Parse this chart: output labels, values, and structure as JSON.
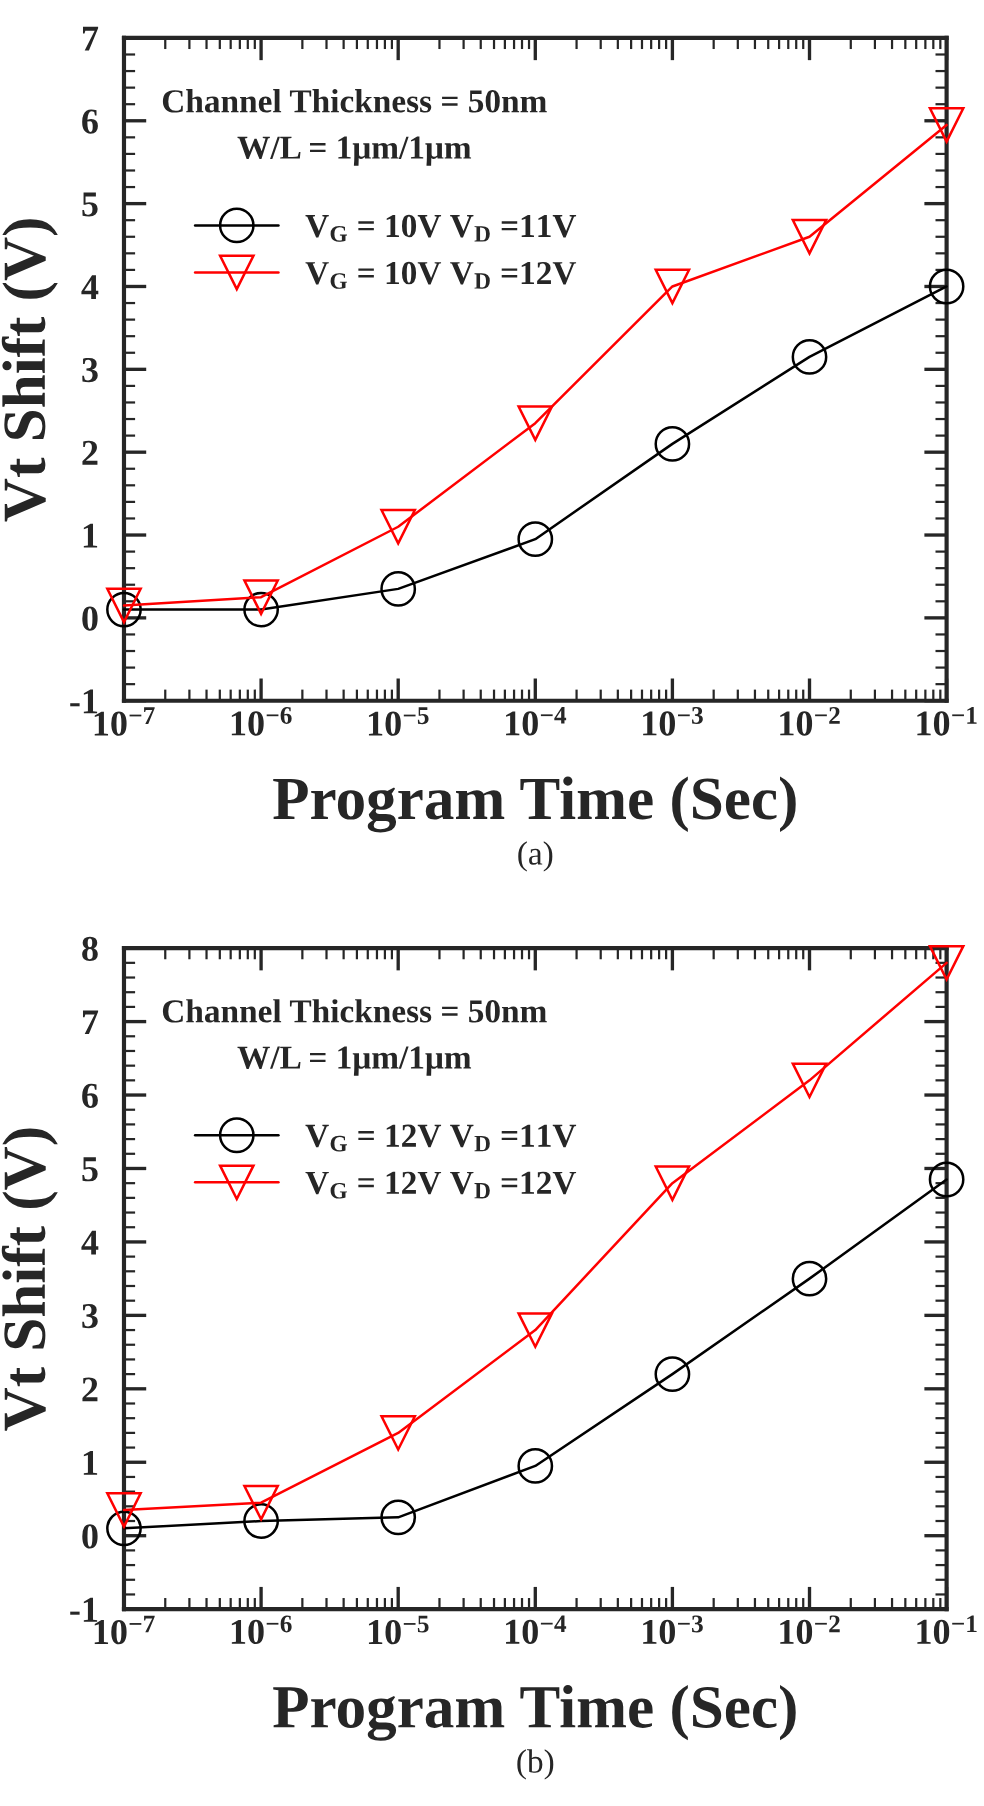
{
  "chart_data": [
    {
      "type": "line",
      "xlabel": "Program Time (Sec)",
      "ylabel": "Vt Shift (V)",
      "log": "x",
      "x": [
        1e-07,
        1e-06,
        1e-05,
        0.0001,
        0.001,
        0.01,
        0.1
      ],
      "series": [
        {
          "name": "V$_{G}$ = 10V V$_{D}$ =11V",
          "color": "#000000",
          "marker": "circle",
          "values": [
            0.1,
            0.1,
            0.35,
            0.95,
            2.1,
            3.15,
            4.0
          ]
        },
        {
          "name": "V$_{G}$ = 10V V$_{D}$ =12V",
          "color": "#ff0000",
          "marker": "triangle",
          "values": [
            0.15,
            0.25,
            1.1,
            2.35,
            4.0,
            4.6,
            5.95
          ]
        }
      ],
      "xlim": [
        1e-07,
        0.1
      ],
      "ylim": [
        -1,
        7
      ],
      "xticks": [
        {
          "value": 1e-07,
          "label": "10$^{−7}$"
        },
        {
          "value": 1e-06,
          "label": "10$^{−6}$"
        },
        {
          "value": 1e-05,
          "label": "10$^{−5}$"
        },
        {
          "value": 0.0001,
          "label": "10$^{−4}$"
        },
        {
          "value": 0.001,
          "label": "10$^{−3}$"
        },
        {
          "value": 0.01,
          "label": "10$^{−2}$"
        },
        {
          "value": 0.1,
          "label": "10$^{−1}$"
        }
      ],
      "yticks": [
        -1,
        0,
        1,
        2,
        3,
        4,
        5,
        6,
        7
      ],
      "legend": "top left",
      "grid": false,
      "line_style": "solid",
      "annotations": [
        "Channel Thickness = 50nm",
        "W/L = 1μm/1μm",
        "(a)"
      ]
    },
    {
      "type": "line",
      "xlabel": "Program Time (Sec)",
      "ylabel": "Vt Shift (V)",
      "log": "x",
      "x": [
        1e-07,
        1e-06,
        1e-05,
        0.0001,
        0.001,
        0.01,
        0.1
      ],
      "series": [
        {
          "name": "V$_{G}$ = 12V V$_{D}$ =11V",
          "color": "#000000",
          "marker": "circle",
          "values": [
            0.1,
            0.2,
            0.25,
            0.95,
            2.2,
            3.5,
            4.85
          ]
        },
        {
          "name": "V$_{G}$ = 12V V$_{D}$ =12V",
          "color": "#ff0000",
          "marker": "triangle",
          "values": [
            0.35,
            0.45,
            1.4,
            2.8,
            4.8,
            6.2,
            7.8
          ]
        }
      ],
      "xlim": [
        1e-07,
        0.1
      ],
      "ylim": [
        -1,
        8
      ],
      "xticks": [
        {
          "value": 1e-07,
          "label": "10$^{−7}$"
        },
        {
          "value": 1e-06,
          "label": "10$^{−6}$"
        },
        {
          "value": 1e-05,
          "label": "10$^{−5}$"
        },
        {
          "value": 0.0001,
          "label": "10$^{−4}$"
        },
        {
          "value": 0.001,
          "label": "10$^{−3}$"
        },
        {
          "value": 0.01,
          "label": "10$^{−2}$"
        },
        {
          "value": 0.1,
          "label": "10$^{−1}$"
        }
      ],
      "yticks": [
        -1,
        0,
        1,
        2,
        3,
        4,
        5,
        6,
        7,
        8
      ],
      "legend": "top left",
      "grid": false,
      "line_style": "solid",
      "annotations": [
        "Channel Thickness = 50nm",
        "W/L = 1μm/1μm",
        "(b)"
      ]
    }
  ]
}
